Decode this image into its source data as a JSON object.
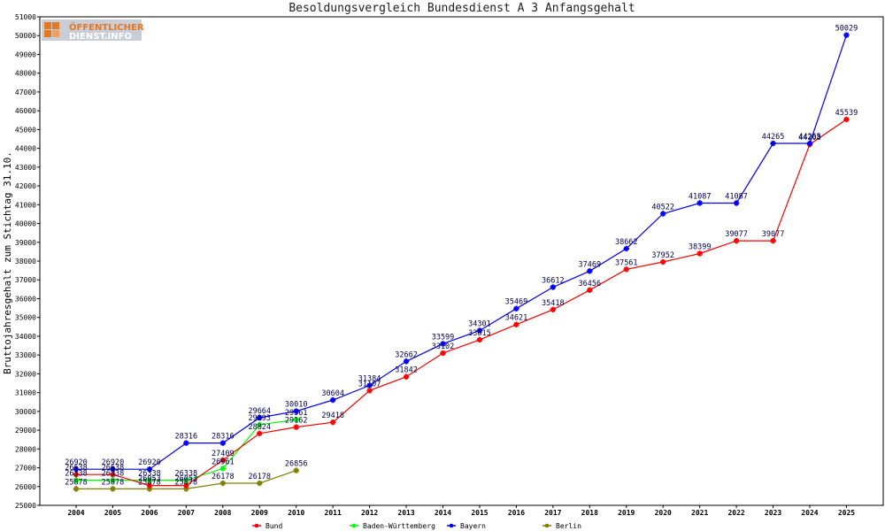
{
  "chart_data": {
    "type": "line",
    "title": "Besoldungsvergleich Bundesdienst A 3 Anfangsgehalt",
    "ylabel": "Bruttojahresgehalt zum Stichtag 31.10.",
    "xlabel": "",
    "ylim": [
      25000,
      51000
    ],
    "y_ticks": [
      25000,
      26000,
      27000,
      28000,
      29000,
      30000,
      31000,
      32000,
      33000,
      34000,
      35000,
      36000,
      37000,
      38000,
      39000,
      40000,
      41000,
      42000,
      43000,
      44000,
      45000,
      46000,
      47000,
      48000,
      49000,
      50000,
      51000
    ],
    "x": [
      "2004",
      "2005",
      "2006",
      "2007",
      "2008",
      "2009",
      "2010",
      "2011",
      "2012",
      "2013",
      "2014",
      "2015",
      "2016",
      "2017",
      "2018",
      "2019",
      "2020",
      "2021",
      "2022",
      "2023",
      "2024",
      "2025"
    ],
    "legend_position": "bottom",
    "grid": false,
    "series": [
      {
        "name": "Bund",
        "color": "#ff0000",
        "values": [
          26638,
          26638,
          26053,
          26053,
          27409,
          28824,
          29162,
          29418,
          31107,
          31842,
          33102,
          33815,
          34621,
          35418,
          36456,
          37561,
          37952,
          38399,
          39077,
          39077,
          44208,
          45539
        ]
      },
      {
        "name": "Baden-Württemberg",
        "color": "#00ff00",
        "values": [
          26338,
          26338,
          26338,
          26338,
          26961,
          29293,
          29561,
          null,
          null,
          null,
          null,
          null,
          null,
          null,
          null,
          null,
          null,
          null,
          null,
          null,
          null,
          null
        ]
      },
      {
        "name": "Bayern",
        "color": "#0000ff",
        "values": [
          26920,
          26920,
          26920,
          28316,
          28316,
          29664,
          30010,
          30604,
          31384,
          32662,
          33599,
          34301,
          35469,
          36612,
          37469,
          38662,
          40522,
          41087,
          41087,
          44265,
          44265,
          50029
        ]
      },
      {
        "name": "Berlin",
        "color": "#808000",
        "values": [
          25878,
          25878,
          25878,
          25878,
          26178,
          26178,
          26856,
          null,
          null,
          null,
          null,
          null,
          null,
          null,
          null,
          null,
          null,
          null,
          null,
          null,
          null,
          null
        ]
      }
    ]
  },
  "logo": {
    "line1": "ÖFFENTLICHER",
    "line2": "DIENST.INFO"
  }
}
